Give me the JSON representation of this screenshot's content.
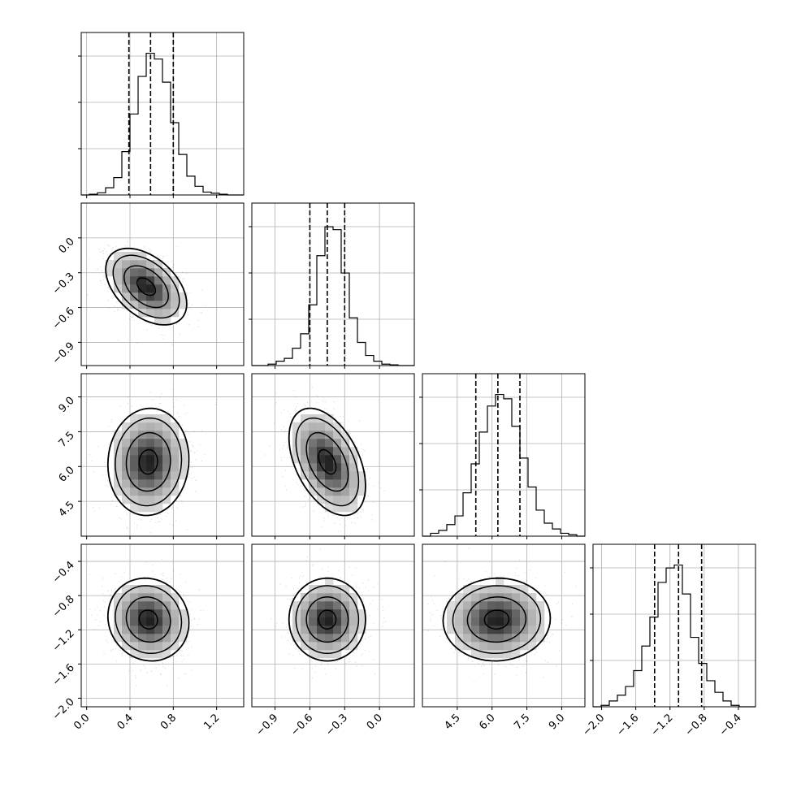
{
  "chart_data": {
    "type": "corner",
    "grid": true,
    "params": [
      {
        "hist_range": [
          -0.05,
          1.45
        ],
        "ticks": [
          0.0,
          0.4,
          0.8,
          1.2
        ],
        "tick_labels": [
          "0.0",
          "0.4",
          "0.8",
          "1.2"
        ],
        "quantiles": [
          0.39,
          0.59,
          0.8
        ],
        "hist_bins": [
          0.0,
          0.005,
          0.015,
          0.05,
          0.12,
          0.3,
          0.56,
          0.82,
          0.98,
          0.94,
          0.78,
          0.5,
          0.28,
          0.13,
          0.06,
          0.02,
          0.012,
          0.005,
          0.0,
          0.0
        ]
      },
      {
        "hist_range": [
          -1.1,
          0.3
        ],
        "ticks": [
          -0.9,
          -0.6,
          -0.3,
          0.0
        ],
        "tick_labels": [
          "−0.9",
          "−0.6",
          "−0.3",
          "0.0"
        ],
        "quantiles": [
          -0.6,
          -0.45,
          -0.3
        ],
        "hist_bins": [
          0.0,
          0.0,
          0.01,
          0.03,
          0.05,
          0.12,
          0.22,
          0.42,
          0.76,
          0.96,
          0.94,
          0.64,
          0.33,
          0.16,
          0.07,
          0.03,
          0.01,
          0.005,
          0.0,
          0.0
        ]
      },
      {
        "hist_range": [
          3.0,
          10.0
        ],
        "ticks": [
          4.5,
          6.0,
          7.5,
          9.0
        ],
        "tick_labels": [
          "4.5",
          "6.0",
          "7.5",
          "9.0"
        ],
        "quantiles": [
          5.3,
          6.25,
          7.2
        ],
        "hist_bins": [
          0.0,
          0.02,
          0.04,
          0.08,
          0.14,
          0.3,
          0.5,
          0.72,
          0.9,
          0.98,
          0.95,
          0.76,
          0.54,
          0.34,
          0.18,
          0.09,
          0.05,
          0.02,
          0.01,
          0.0
        ]
      },
      {
        "hist_range": [
          -2.1,
          -0.2
        ],
        "ticks": [
          -2.0,
          -1.6,
          -1.2,
          -0.8,
          -0.4
        ],
        "tick_labels": [
          "−2.0",
          "−1.6",
          "−1.2",
          "−0.8",
          "−0.4"
        ],
        "quantiles": [
          -1.38,
          -1.1,
          -0.83
        ],
        "hist_bins": [
          0.0,
          0.01,
          0.04,
          0.08,
          0.14,
          0.25,
          0.42,
          0.62,
          0.86,
          0.96,
          0.98,
          0.78,
          0.48,
          0.3,
          0.18,
          0.1,
          0.04,
          0.01,
          0.0,
          0.0
        ]
      }
    ],
    "pairs": [
      {
        "x": 0,
        "y": 1,
        "center": [
          0.55,
          -0.42
        ],
        "sd": [
          0.17,
          0.15
        ],
        "rho": -0.45
      },
      {
        "x": 0,
        "y": 2,
        "center": [
          0.57,
          6.2
        ],
        "sd": [
          0.17,
          1.05
        ],
        "rho": 0.05
      },
      {
        "x": 1,
        "y": 2,
        "center": [
          -0.45,
          6.2
        ],
        "sd": [
          0.15,
          1.05
        ],
        "rho": -0.45
      },
      {
        "x": 0,
        "y": 3,
        "center": [
          0.57,
          -1.08
        ],
        "sd": [
          0.17,
          0.22
        ],
        "rho": -0.08
      },
      {
        "x": 1,
        "y": 3,
        "center": [
          -0.45,
          -1.08
        ],
        "sd": [
          0.15,
          0.22
        ],
        "rho": 0.0
      },
      {
        "x": 2,
        "y": 3,
        "center": [
          6.2,
          -1.08
        ],
        "sd": [
          1.05,
          0.22
        ],
        "rho": 0.03
      }
    ]
  }
}
